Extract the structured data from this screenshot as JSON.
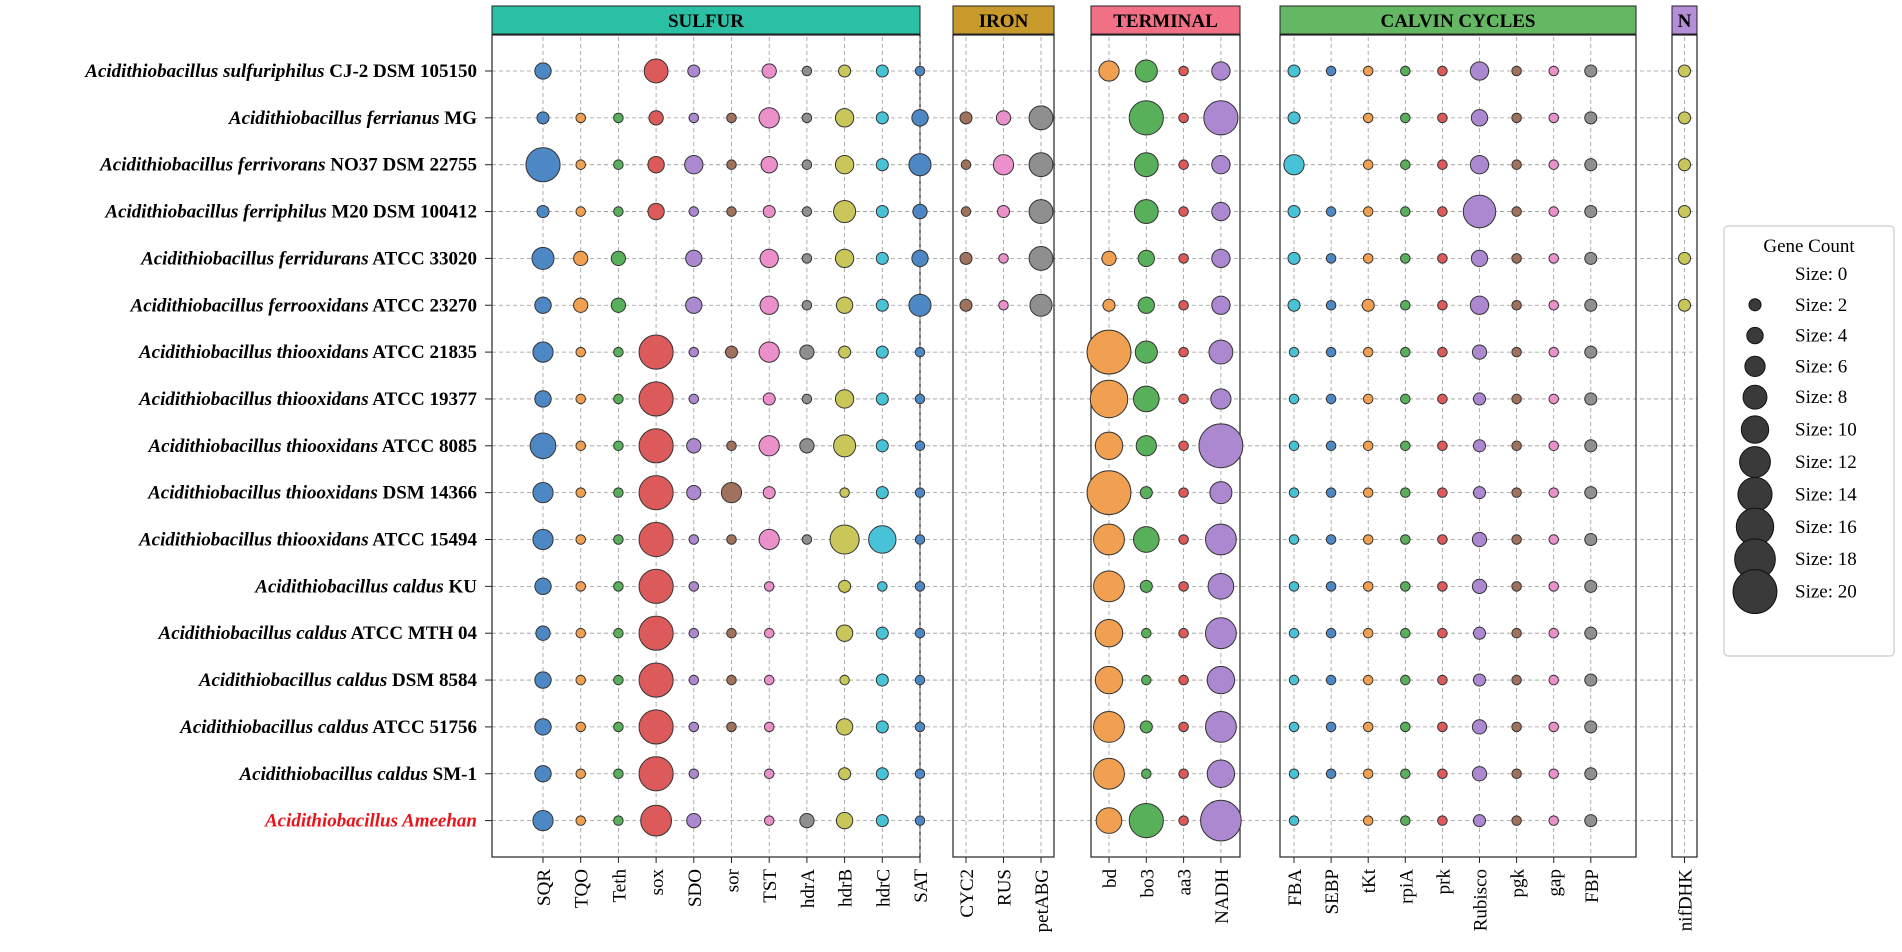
{
  "chart_data": {
    "type": "scatter",
    "title": "",
    "xlabel": "",
    "ylabel": "",
    "grid": true,
    "legend": {
      "title": "Gene Count",
      "placement": "right",
      "entries": [
        "Size: 0",
        "Size: 2",
        "Size: 4",
        "Size: 6",
        "Size: 8",
        "Size: 10",
        "Size: 12",
        "Size: 14",
        "Size: 16",
        "Size: 18",
        "Size: 20"
      ],
      "sizes": [
        0,
        2,
        4,
        6,
        8,
        10,
        12,
        14,
        16,
        18,
        20
      ]
    },
    "species": [
      {
        "italic": "Acidithiobacillus sulfuriphilus",
        "strain": "CJ-2 DSM 105150",
        "highlight": false
      },
      {
        "italic": "Acidithiobacillus ferrianus",
        "strain": "MG",
        "highlight": false
      },
      {
        "italic": "Acidithiobacillus ferrivorans",
        "strain": "NO37 DSM 22755",
        "highlight": false
      },
      {
        "italic": "Acidithiobacillus ferriphilus",
        "strain": "M20 DSM 100412",
        "highlight": false
      },
      {
        "italic": "Acidithiobacillus ferridurans",
        "strain": "ATCC 33020",
        "highlight": false
      },
      {
        "italic": "Acidithiobacillus ferrooxidans",
        "strain": "ATCC 23270",
        "highlight": false
      },
      {
        "italic": "Acidithiobacillus thiooxidans",
        "strain": "ATCC 21835",
        "highlight": false
      },
      {
        "italic": "Acidithiobacillus thiooxidans",
        "strain": "ATCC 19377",
        "highlight": false
      },
      {
        "italic": "Acidithiobacillus thiooxidans",
        "strain": "ATCC 8085",
        "highlight": false
      },
      {
        "italic": "Acidithiobacillus thiooxidans",
        "strain": "DSM 14366",
        "highlight": false
      },
      {
        "italic": "Acidithiobacillus thiooxidans",
        "strain": "ATCC 15494",
        "highlight": false
      },
      {
        "italic": "Acidithiobacillus caldus",
        "strain": "KU",
        "highlight": false
      },
      {
        "italic": "Acidithiobacillus caldus",
        "strain": "ATCC MTH 04",
        "highlight": false
      },
      {
        "italic": "Acidithiobacillus caldus",
        "strain": "DSM 8584",
        "highlight": false
      },
      {
        "italic": "Acidithiobacillus caldus",
        "strain": "ATCC 51756",
        "highlight": false
      },
      {
        "italic": "Acidithiobacillus caldus",
        "strain": "SM-1",
        "highlight": false
      },
      {
        "italic": "Acidithiobacillus Ameehan",
        "strain": "",
        "highlight": true
      }
    ],
    "colors": {
      "highlight": "#e8141c",
      "grid": "#9a9a9a",
      "legend_marker": "#3a3a3a",
      "legend_border": "#cccccc"
    },
    "panels": [
      {
        "name": "SULFUR",
        "header_color": "#2bbfa6",
        "genes": [
          "SQR",
          "TQO",
          "Teth",
          "sox",
          "SDO",
          "sor",
          "TST",
          "hdrA",
          "hdrB",
          "hdrC",
          "SAT"
        ],
        "colors": [
          "#4e88c4",
          "#f0a050",
          "#58b05a",
          "#dc5a5a",
          "#ab88d0",
          "#a0725e",
          "#ec90cc",
          "#8f8f8f",
          "#c9c75a",
          "#48c2d6",
          "#4e88c4"
        ],
        "values": [
          [
            4,
            0,
            0,
            8,
            2,
            0,
            3,
            1,
            2,
            2,
            1
          ],
          [
            2,
            1,
            1,
            3,
            1,
            1,
            6,
            1,
            5,
            2,
            4
          ],
          [
            14,
            1,
            1,
            4,
            5,
            1,
            4,
            1,
            5,
            2,
            7
          ],
          [
            2,
            1,
            1,
            4,
            1,
            1,
            2,
            1,
            7,
            2,
            3
          ],
          [
            7,
            3,
            3,
            0,
            4,
            0,
            5,
            1,
            5,
            2,
            4
          ],
          [
            4,
            3,
            3,
            0,
            4,
            0,
            5,
            1,
            4,
            2,
            7
          ],
          [
            6,
            1,
            1,
            14,
            1,
            2,
            6,
            3,
            2,
            2,
            1
          ],
          [
            4,
            1,
            1,
            14,
            1,
            0,
            2,
            1,
            5,
            2,
            1
          ],
          [
            9,
            1,
            1,
            14,
            3,
            1,
            6,
            3,
            7,
            2,
            1
          ],
          [
            6,
            1,
            1,
            14,
            3,
            6,
            2,
            0,
            1,
            2,
            1
          ],
          [
            6,
            1,
            1,
            14,
            1,
            1,
            6,
            1,
            11,
            10,
            1
          ],
          [
            4,
            1,
            1,
            14,
            1,
            0,
            1,
            0,
            2,
            1,
            1
          ],
          [
            3,
            1,
            1,
            14,
            1,
            1,
            1,
            0,
            4,
            2,
            1
          ],
          [
            4,
            1,
            1,
            14,
            1,
            1,
            1,
            0,
            1,
            2,
            1
          ],
          [
            4,
            1,
            1,
            14,
            1,
            1,
            1,
            0,
            4,
            2,
            1
          ],
          [
            4,
            1,
            1,
            14,
            1,
            0,
            1,
            0,
            2,
            2,
            1
          ],
          [
            6,
            1,
            1,
            12,
            3,
            0,
            1,
            3,
            4,
            2,
            1
          ]
        ]
      },
      {
        "name": "IRON",
        "header_color": "#c89a2c",
        "genes": [
          "CYC2",
          "RUS",
          "petABG"
        ],
        "colors": [
          "#a0725e",
          "#ec90cc",
          "#8f8f8f"
        ],
        "values": [
          [
            0,
            0,
            0
          ],
          [
            2,
            3,
            8
          ],
          [
            1,
            6,
            8
          ],
          [
            1,
            2,
            8
          ],
          [
            2,
            1,
            8
          ],
          [
            2,
            1,
            7
          ],
          [
            0,
            0,
            0
          ],
          [
            0,
            0,
            0
          ],
          [
            0,
            0,
            0
          ],
          [
            0,
            0,
            0
          ],
          [
            0,
            0,
            0
          ],
          [
            0,
            0,
            0
          ],
          [
            0,
            0,
            0
          ],
          [
            0,
            0,
            0
          ],
          [
            0,
            0,
            0
          ],
          [
            0,
            0,
            0
          ],
          [
            0,
            0,
            0
          ]
        ]
      },
      {
        "name": "TERMINAL",
        "header_color": "#f27086",
        "genes": [
          "bd",
          "bo3",
          "aa3",
          "NADH"
        ],
        "colors": [
          "#f0a050",
          "#58b05a",
          "#dc5a5a",
          "#ab88d0"
        ],
        "values": [
          [
            6,
            7,
            1,
            5
          ],
          [
            0,
            14,
            1,
            14
          ],
          [
            0,
            8,
            1,
            5
          ],
          [
            0,
            8,
            1,
            5
          ],
          [
            3,
            4,
            1,
            5
          ],
          [
            2,
            4,
            1,
            5
          ],
          [
            20,
            7,
            1,
            8
          ],
          [
            16,
            9,
            1,
            6
          ],
          [
            10,
            6,
            1,
            20
          ],
          [
            20,
            2,
            1,
            7
          ],
          [
            12,
            9,
            1,
            12
          ],
          [
            12,
            2,
            1,
            9
          ],
          [
            10,
            1,
            1,
            12
          ],
          [
            10,
            1,
            1,
            10
          ],
          [
            12,
            2,
            1,
            12
          ],
          [
            12,
            1,
            1,
            10
          ],
          [
            9,
            14,
            1,
            18
          ]
        ]
      },
      {
        "name": "CALVIN CYCLES",
        "header_color": "#64b864",
        "genes": [
          "FBA",
          "SEBP",
          "tKt",
          "rpiA",
          "prk",
          "Rubisco",
          "pgk",
          "gap",
          "FBP"
        ],
        "colors": [
          "#48c2d6",
          "#4e88c4",
          "#f0a050",
          "#58b05a",
          "#dc5a5a",
          "#ab88d0",
          "#a0725e",
          "#ec90cc",
          "#8f8f8f"
        ],
        "values": [
          [
            2,
            1,
            1,
            1,
            1,
            5,
            1,
            1,
            2
          ],
          [
            2,
            0,
            1,
            1,
            1,
            4,
            1,
            1,
            2
          ],
          [
            6,
            0,
            1,
            1,
            1,
            5,
            1,
            1,
            2
          ],
          [
            2,
            1,
            1,
            1,
            1,
            13,
            1,
            1,
            2
          ],
          [
            2,
            1,
            1,
            1,
            1,
            4,
            1,
            1,
            2
          ],
          [
            2,
            1,
            2,
            1,
            1,
            5,
            1,
            1,
            2
          ],
          [
            1,
            1,
            1,
            1,
            1,
            3,
            1,
            1,
            2
          ],
          [
            1,
            1,
            1,
            1,
            1,
            2,
            1,
            1,
            2
          ],
          [
            1,
            1,
            1,
            1,
            1,
            2,
            1,
            1,
            2
          ],
          [
            1,
            1,
            1,
            1,
            1,
            2,
            1,
            1,
            2
          ],
          [
            1,
            1,
            1,
            1,
            1,
            3,
            1,
            1,
            2
          ],
          [
            1,
            1,
            1,
            1,
            1,
            3,
            1,
            1,
            2
          ],
          [
            1,
            1,
            1,
            1,
            1,
            2,
            1,
            1,
            2
          ],
          [
            1,
            1,
            1,
            1,
            1,
            2,
            1,
            1,
            2
          ],
          [
            1,
            1,
            1,
            1,
            1,
            3,
            1,
            1,
            2
          ],
          [
            1,
            1,
            1,
            1,
            1,
            3,
            1,
            1,
            2
          ],
          [
            1,
            0,
            1,
            1,
            1,
            2,
            1,
            1,
            2
          ]
        ]
      },
      {
        "name": "N",
        "header_color": "#b48ed6",
        "genes": [
          "nifDHK"
        ],
        "colors": [
          "#c9c75a"
        ],
        "values": [
          [
            2
          ],
          [
            2
          ],
          [
            2
          ],
          [
            2
          ],
          [
            2
          ],
          [
            2
          ],
          [
            0
          ],
          [
            0
          ],
          [
            0
          ],
          [
            0
          ],
          [
            0
          ],
          [
            0
          ],
          [
            0
          ],
          [
            0
          ],
          [
            0
          ],
          [
            0
          ],
          [
            0
          ]
        ]
      }
    ]
  }
}
